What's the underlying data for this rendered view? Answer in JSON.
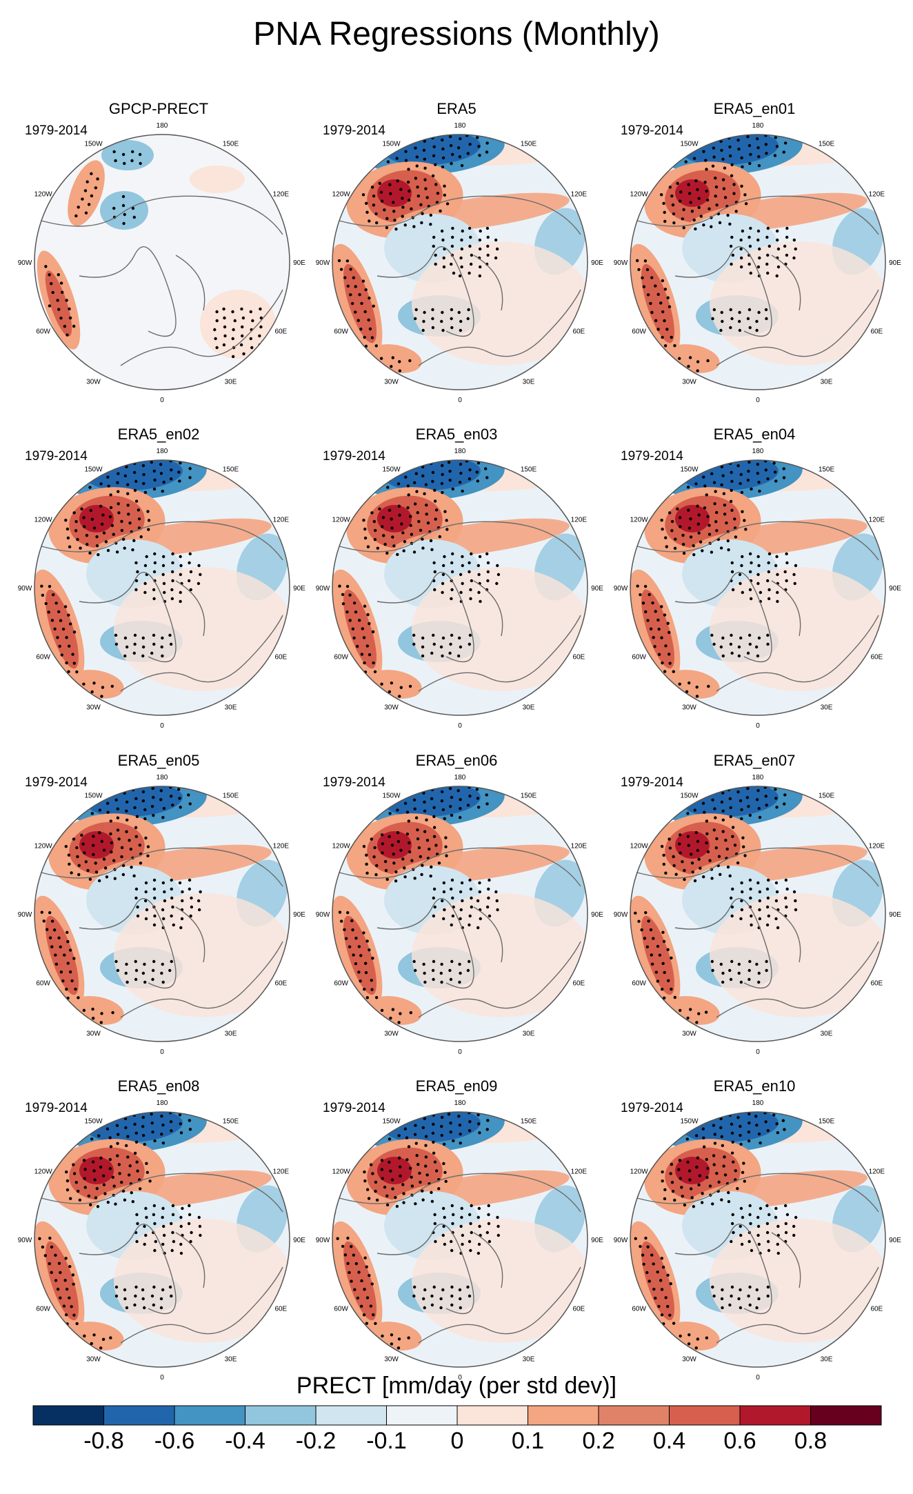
{
  "title": "PNA Regressions (Monthly)",
  "chart_data": {
    "type": "heatmap",
    "projection": "north polar stereographic",
    "variable_label": "PRECT [mm/day (per std dev)]",
    "period": "1979-2014",
    "longitude_labels": [
      "180",
      "150E",
      "120E",
      "90E",
      "60E",
      "30E",
      "0",
      "30W",
      "60W",
      "90W",
      "120W",
      "150W"
    ],
    "panels": [
      {
        "title": "GPCP-PRECT",
        "period": "1979-2014",
        "pattern": "obs"
      },
      {
        "title": "ERA5",
        "period": "1979-2014",
        "pattern": "model"
      },
      {
        "title": "ERA5_en01",
        "period": "1979-2014",
        "pattern": "model"
      },
      {
        "title": "ERA5_en02",
        "period": "1979-2014",
        "pattern": "model"
      },
      {
        "title": "ERA5_en03",
        "period": "1979-2014",
        "pattern": "model"
      },
      {
        "title": "ERA5_en04",
        "period": "1979-2014",
        "pattern": "model"
      },
      {
        "title": "ERA5_en05",
        "period": "1979-2014",
        "pattern": "model"
      },
      {
        "title": "ERA5_en06",
        "period": "1979-2014",
        "pattern": "model"
      },
      {
        "title": "ERA5_en07",
        "period": "1979-2014",
        "pattern": "model"
      },
      {
        "title": "ERA5_en08",
        "period": "1979-2014",
        "pattern": "model"
      },
      {
        "title": "ERA5_en09",
        "period": "1979-2014",
        "pattern": "model"
      },
      {
        "title": "ERA5_en10",
        "period": "1979-2014",
        "pattern": "model"
      }
    ],
    "colorbar": {
      "title": "PRECT [mm/day (per std dev)]",
      "boundaries": [
        -0.8,
        -0.6,
        -0.4,
        -0.2,
        -0.1,
        0,
        0.1,
        0.2,
        0.4,
        0.6,
        0.8
      ],
      "tick_labels": [
        "-0.8",
        "-0.6",
        "-0.4",
        "-0.2",
        "-0.1",
        "0",
        "0.1",
        "0.2",
        "0.4",
        "0.6",
        "0.8"
      ],
      "colors": [
        "#053061",
        "#2166ac",
        "#4393c3",
        "#92c5de",
        "#d1e5f0",
        "#eef3f8",
        "#fbe4d9",
        "#f4a582",
        "#e08268",
        "#d6604d",
        "#b2182b",
        "#67001f"
      ]
    }
  }
}
